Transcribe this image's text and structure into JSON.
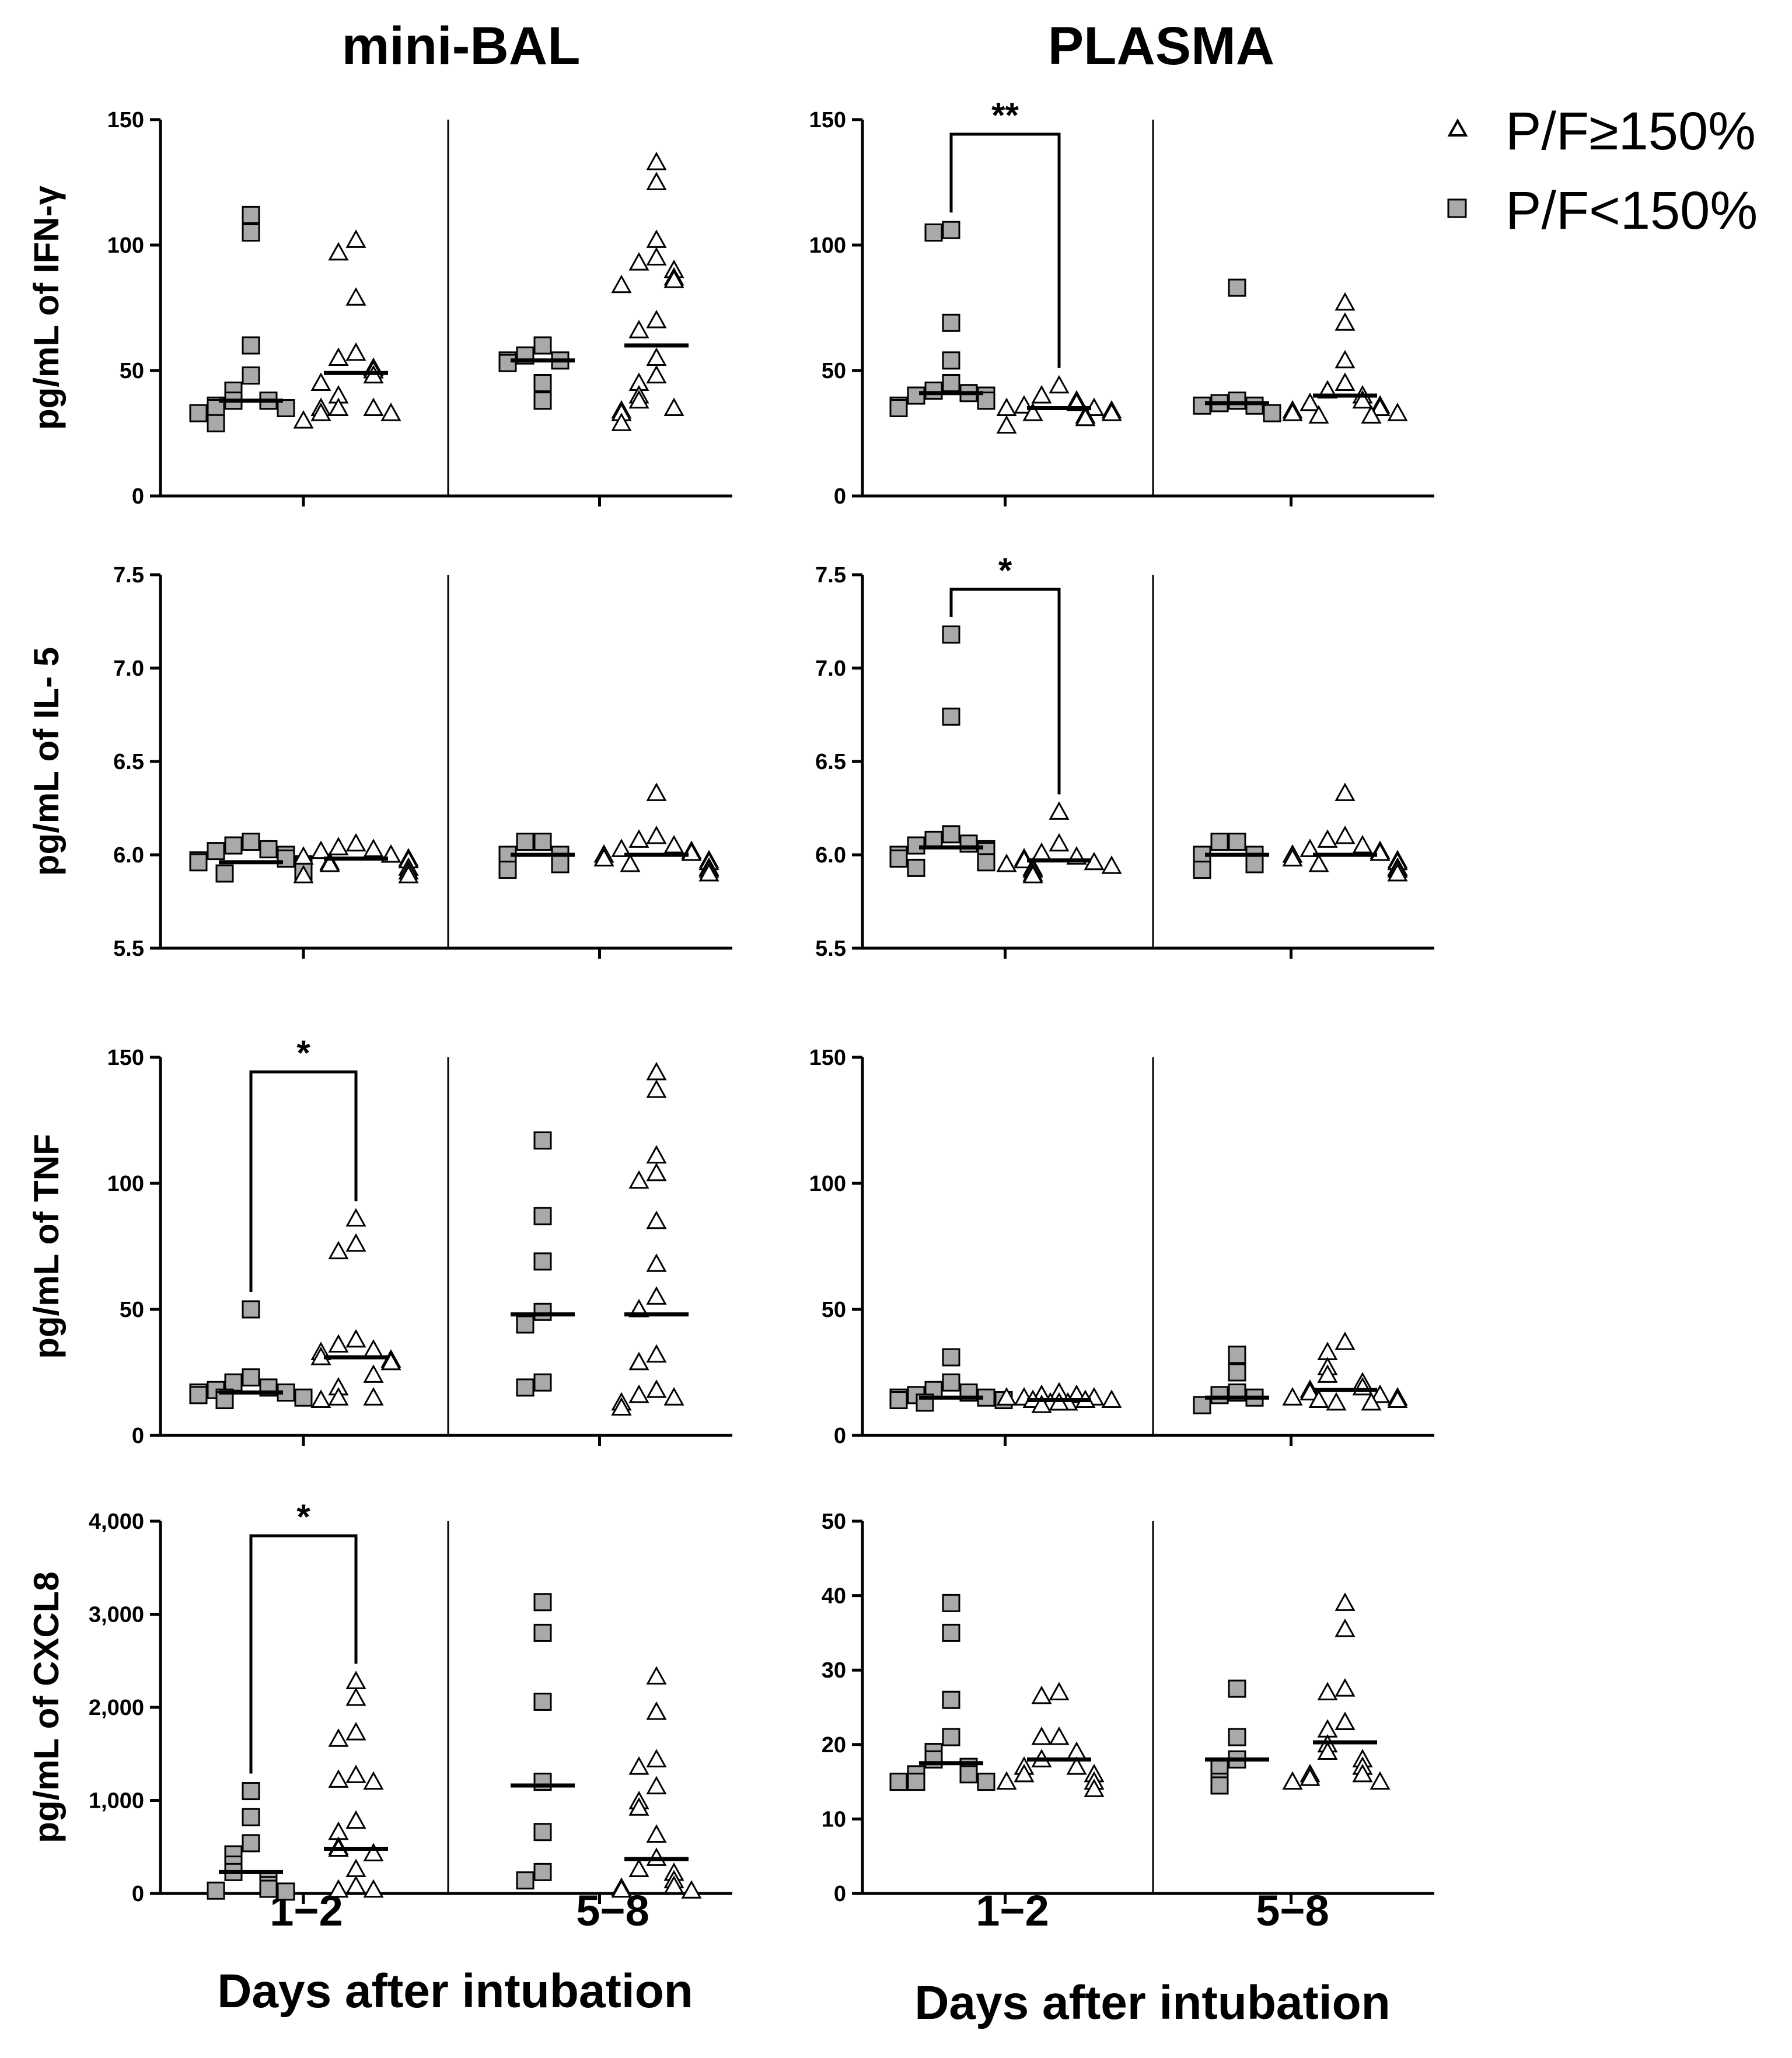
{
  "column_titles": [
    "mini-BAL",
    "PLASMA"
  ],
  "legend": [
    {
      "label": "P/F≥150%",
      "marker": "open-triangle"
    },
    {
      "label": "P/F<150%",
      "marker": "gray-square"
    }
  ],
  "colors": {
    "square_fill": "#a9a9a9",
    "triangle_fill": "#ffffff",
    "stroke": "#000000"
  },
  "x_categories": [
    "1−2",
    "5−8"
  ],
  "x_label": "Days after intubation",
  "chart_data": [
    {
      "type": "scatter",
      "id": "ifng-bal",
      "row": 0,
      "col": 0,
      "ylabel": "pg/mL of IFN-γ",
      "ylim": [
        0,
        150
      ],
      "yticks": [
        0,
        50,
        100,
        150
      ],
      "ytick_labels": [
        "0",
        "50",
        "100",
        "150"
      ],
      "categories": [
        "1−2",
        "5−8"
      ],
      "series": [
        {
          "name": "P/F<150%",
          "group": "1−2",
          "values": [
            112,
            105,
            60,
            48,
            42,
            38,
            38,
            36,
            35,
            35,
            33,
            29
          ],
          "median": 38
        },
        {
          "name": "P/F≥150%",
          "group": "1−2",
          "values": [
            102,
            97,
            79,
            57,
            55,
            51,
            50,
            48,
            45,
            40,
            35,
            35,
            35,
            33,
            33,
            30
          ],
          "median": 49
        },
        {
          "name": "P/F<150%",
          "group": "5−8",
          "values": [
            60,
            56,
            54,
            54,
            53,
            45,
            38
          ],
          "median": 54
        },
        {
          "name": "P/F≥150%",
          "group": "5−8",
          "values": [
            133,
            125,
            102,
            95,
            93,
            90,
            87,
            86,
            84,
            70,
            66,
            55,
            48,
            45,
            40,
            38,
            35,
            34,
            33,
            29
          ],
          "median": 60
        }
      ],
      "annotations": []
    },
    {
      "type": "scatter",
      "id": "ifng-plasma",
      "row": 0,
      "col": 1,
      "ylabel": "",
      "ylim": [
        0,
        150
      ],
      "yticks": [
        0,
        50,
        100,
        150
      ],
      "ytick_labels": [
        "0",
        "50",
        "100",
        "150"
      ],
      "categories": [
        "1−2",
        "5−8"
      ],
      "series": [
        {
          "name": "P/F<150%",
          "group": "1−2",
          "values": [
            106,
            105,
            69,
            54,
            45,
            42,
            41,
            40,
            40,
            38,
            36,
            35
          ],
          "median": 41
        },
        {
          "name": "P/F≥150%",
          "group": "1−2",
          "values": [
            44,
            40,
            38,
            37,
            36,
            35,
            35,
            34,
            33,
            33,
            32,
            31,
            28
          ],
          "median": 35
        },
        {
          "name": "P/F<150%",
          "group": "5−8",
          "values": [
            83,
            38,
            37,
            36,
            36,
            33
          ],
          "median": 37
        },
        {
          "name": "P/F≥150%",
          "group": "5−8",
          "values": [
            77,
            69,
            54,
            45,
            42,
            40,
            38,
            37,
            36,
            35,
            34,
            33,
            33,
            32,
            32
          ],
          "median": 40
        }
      ],
      "annotations": [
        {
          "text": "**",
          "from": "P/F<150% 1−2",
          "to": "P/F≥150% 1−2"
        }
      ]
    },
    {
      "type": "scatter",
      "id": "il5-bal",
      "row": 1,
      "col": 0,
      "ylabel": "pg/mL of IL- 5",
      "ylim": [
        5.5,
        7.5
      ],
      "yticks": [
        5.5,
        6.0,
        6.5,
        7.0,
        7.5
      ],
      "ytick_labels": [
        "5.5",
        "6.0",
        "6.5",
        "7.0",
        "7.5"
      ],
      "categories": [
        "1−2",
        "5−8"
      ],
      "series": [
        {
          "name": "P/F<150%",
          "group": "1−2",
          "values": [
            6.07,
            6.05,
            6.03,
            6.02,
            6.0,
            5.98,
            5.97,
            5.96,
            5.95,
            5.94,
            5.93,
            5.91,
            5.9
          ],
          "median": 5.96
        },
        {
          "name": "P/F≥150%",
          "group": "1−2",
          "values": [
            6.06,
            6.04,
            6.03,
            6.02,
            6.0,
            5.99,
            5.98,
            5.97,
            5.96,
            5.95,
            5.93,
            5.91,
            5.89,
            5.89
          ],
          "median": 5.98
        },
        {
          "name": "P/F<150%",
          "group": "5−8",
          "values": [
            6.07,
            6.07,
            6.0,
            6.0,
            5.95,
            5.92
          ],
          "median": 6.0
        },
        {
          "name": "P/F≥150%",
          "group": "5−8",
          "values": [
            6.33,
            6.1,
            6.08,
            6.05,
            6.03,
            6.02,
            6.01,
            6.0,
            5.98,
            5.97,
            5.96,
            5.95,
            5.93,
            5.92,
            5.9
          ],
          "median": 6.0
        }
      ],
      "annotations": []
    },
    {
      "type": "scatter",
      "id": "il5-plasma",
      "row": 1,
      "col": 1,
      "ylabel": "",
      "ylim": [
        5.5,
        7.5
      ],
      "yticks": [
        5.5,
        6.0,
        6.5,
        7.0,
        7.5
      ],
      "ytick_labels": [
        "5.5",
        "6.0",
        "6.5",
        "7.0",
        "7.5"
      ],
      "categories": [
        "1−2",
        "5−8"
      ],
      "series": [
        {
          "name": "P/F<150%",
          "group": "1−2",
          "values": [
            7.18,
            6.74,
            6.11,
            6.08,
            6.06,
            6.05,
            6.03,
            6.02,
            6.0,
            5.98,
            5.96,
            5.93
          ],
          "median": 6.04
        },
        {
          "name": "P/F≥150%",
          "group": "1−2",
          "values": [
            6.23,
            6.06,
            6.01,
            5.99,
            5.98,
            5.97,
            5.96,
            5.95,
            5.94,
            5.93,
            5.92,
            5.9,
            5.89
          ],
          "median": 5.97
        },
        {
          "name": "P/F<150%",
          "group": "5−8",
          "values": [
            6.07,
            6.07,
            6.0,
            6.0,
            5.95,
            5.92
          ],
          "median": 6.0
        },
        {
          "name": "P/F≥150%",
          "group": "5−8",
          "values": [
            6.33,
            6.1,
            6.08,
            6.05,
            6.03,
            6.02,
            6.01,
            6.0,
            5.98,
            5.97,
            5.96,
            5.95,
            5.93,
            5.92,
            5.9
          ],
          "median": 6.0
        }
      ],
      "annotations": [
        {
          "text": "*",
          "from": "P/F<150% 1−2",
          "to": "P/F≥150% 1−2"
        }
      ]
    },
    {
      "type": "scatter",
      "id": "tnf-bal",
      "row": 2,
      "col": 0,
      "ylabel": "pg/mL of TNF",
      "ylim": [
        0,
        150
      ],
      "yticks": [
        0,
        50,
        100,
        150
      ],
      "ytick_labels": [
        "0",
        "50",
        "100",
        "150"
      ],
      "categories": [
        "1−2",
        "5−8"
      ],
      "series": [
        {
          "name": "P/F<150%",
          "group": "1−2",
          "values": [
            50,
            23,
            21,
            19,
            18,
            17,
            17,
            16,
            15,
            15,
            14
          ],
          "median": 17
        },
        {
          "name": "P/F≥150%",
          "group": "1−2",
          "values": [
            86,
            76,
            73,
            38,
            36,
            34,
            33,
            31,
            30,
            29,
            24,
            19,
            15,
            15,
            14
          ],
          "median": 31
        },
        {
          "name": "P/F<150%",
          "group": "5−8",
          "values": [
            117,
            87,
            69,
            49,
            44,
            21,
            19
          ],
          "median": 48
        },
        {
          "name": "P/F≥150%",
          "group": "5−8",
          "values": [
            144,
            137,
            111,
            104,
            101,
            85,
            68,
            55,
            50,
            32,
            29,
            18,
            16,
            15,
            13,
            11
          ],
          "median": 48
        }
      ],
      "annotations": [
        {
          "text": "*",
          "from": "P/F<150% 1−2",
          "to": "P/F≥150% 1−2"
        }
      ]
    },
    {
      "type": "scatter",
      "id": "tnf-plasma",
      "row": 2,
      "col": 1,
      "ylabel": "",
      "ylim": [
        0,
        150
      ],
      "yticks": [
        0,
        50,
        100,
        150
      ],
      "ytick_labels": [
        "0",
        "50",
        "100",
        "150"
      ],
      "categories": [
        "1−2",
        "5−8"
      ],
      "series": [
        {
          "name": "P/F<150%",
          "group": "1−2",
          "values": [
            31,
            21,
            18,
            17,
            16,
            15,
            15,
            14,
            14,
            13
          ],
          "median": 15
        },
        {
          "name": "P/F≥150%",
          "group": "1−2",
          "values": [
            17,
            16,
            16,
            15,
            15,
            15,
            14,
            14,
            14,
            13,
            13,
            13,
            12
          ],
          "median": 14
        },
        {
          "name": "P/F<150%",
          "group": "5−8",
          "values": [
            32,
            25,
            17,
            16,
            15,
            12
          ],
          "median": 15
        },
        {
          "name": "P/F≥150%",
          "group": "5−8",
          "values": [
            37,
            33,
            27,
            24,
            21,
            19,
            18,
            17,
            16,
            15,
            15,
            14,
            14,
            13,
            13
          ],
          "median": 18
        }
      ],
      "annotations": []
    },
    {
      "type": "scatter",
      "id": "cxcl8-bal",
      "row": 3,
      "col": 0,
      "ylabel": "pg/mL of CXCL8",
      "ylim": [
        0,
        4000
      ],
      "yticks": [
        0,
        1000,
        2000,
        3000,
        4000
      ],
      "ytick_labels": [
        "0",
        "1,000",
        "2,000",
        "3,000",
        "4,000"
      ],
      "categories": [
        "1−2",
        "5−8"
      ],
      "series": [
        {
          "name": "P/F<150%",
          "group": "1−2",
          "values": [
            1100,
            820,
            540,
            420,
            310,
            230,
            150,
            90,
            50,
            30,
            20
          ],
          "median": 230
        },
        {
          "name": "P/F≥150%",
          "group": "1−2",
          "values": [
            2280,
            2100,
            1730,
            1660,
            1270,
            1220,
            1200,
            780,
            660,
            500,
            480,
            430,
            260,
            80,
            40,
            40
          ],
          "median": 480
        },
        {
          "name": "P/F<150%",
          "group": "5−8",
          "values": [
            3130,
            2800,
            2060,
            1200,
            660,
            230,
            140
          ],
          "median": 1160
        },
        {
          "name": "P/F≥150%",
          "group": "5−8",
          "values": [
            2330,
            1950,
            1440,
            1360,
            1150,
            990,
            920,
            630,
            380,
            260,
            220,
            140,
            80,
            60,
            40,
            30
          ],
          "median": 370
        }
      ],
      "annotations": [
        {
          "text": "*",
          "from": "P/F<150% 1−2",
          "to": "P/F≥150% 1−2"
        }
      ]
    },
    {
      "type": "scatter",
      "id": "cxcl8-plasma",
      "row": 3,
      "col": 1,
      "ylabel": "",
      "ylim": [
        0,
        50
      ],
      "yticks": [
        0,
        10,
        20,
        30,
        40,
        50
      ],
      "ytick_labels": [
        "0",
        "10",
        "20",
        "30",
        "40",
        "50"
      ],
      "categories": [
        "1−2",
        "5−8"
      ],
      "series": [
        {
          "name": "P/F<150%",
          "group": "1−2",
          "values": [
            39,
            35,
            26,
            21,
            19,
            18,
            17,
            16,
            16,
            15,
            15,
            15
          ],
          "median": 17.5
        },
        {
          "name": "P/F≥150%",
          "group": "1−2",
          "values": [
            27,
            26.5,
            21,
            21,
            19,
            18,
            17,
            17,
            16,
            16,
            15,
            15,
            14
          ],
          "median": 18
        },
        {
          "name": "P/F<150%",
          "group": "5−8",
          "values": [
            27.5,
            21,
            18,
            17,
            15,
            14.5
          ],
          "median": 18
        },
        {
          "name": "P/F≥150%",
          "group": "5−8",
          "values": [
            39,
            35.5,
            27.5,
            27,
            23,
            22,
            20,
            19,
            18,
            17,
            16,
            16,
            15.5,
            15,
            15
          ],
          "median": 20.3
        }
      ],
      "annotations": []
    }
  ]
}
